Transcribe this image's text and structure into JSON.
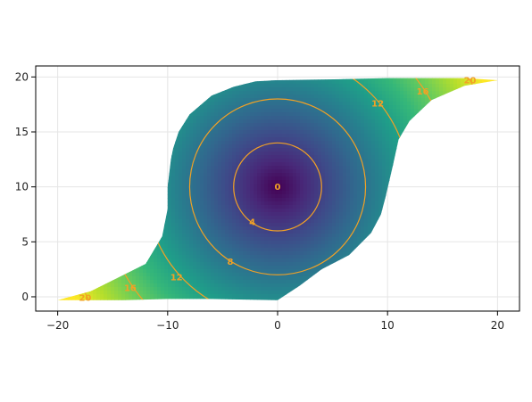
{
  "chart_data": {
    "type": "contour",
    "description_fill": "viridis-shaded distance field over a warped domain, centered at (0,10)",
    "center": [
      0,
      10
    ],
    "xlim": [
      -22,
      22
    ],
    "ylim": [
      -1.3,
      21
    ],
    "xticks": [
      -20,
      -10,
      0,
      10,
      20
    ],
    "xtick_labels": [
      "−20",
      "−10",
      "0",
      "10",
      "20"
    ],
    "yticks": [
      0,
      5,
      10,
      15,
      20
    ],
    "ytick_labels": [
      "0",
      "5",
      "10",
      "15",
      "20"
    ],
    "grid": true,
    "colormap": "viridis",
    "contour_color": "#f2a125",
    "contour_levels": [
      4,
      8,
      12,
      16,
      20
    ],
    "contour_labels": [
      {
        "text": "0",
        "x": 0,
        "y": 10
      },
      {
        "text": "4",
        "x": -2.3,
        "y": 6.8
      },
      {
        "text": "8",
        "x": -4.3,
        "y": 3.2
      },
      {
        "text": "12",
        "x": 9.1,
        "y": 17.6
      },
      {
        "text": "12",
        "x": -9.2,
        "y": 1.8
      },
      {
        "text": "16",
        "x": 13.2,
        "y": 18.7
      },
      {
        "text": "16",
        "x": -13.4,
        "y": 0.8
      },
      {
        "text": "20",
        "x": 17.5,
        "y": 19.7
      },
      {
        "text": "20",
        "x": -17.5,
        "y": -0.1
      }
    ],
    "domain_boundary": {
      "top": [
        [
          -9.7,
          12.5
        ],
        [
          -9.5,
          13.5
        ],
        [
          -9,
          15
        ],
        [
          -8,
          16.6
        ],
        [
          -6,
          18.3
        ],
        [
          -4,
          19.1
        ],
        [
          -2,
          19.6
        ],
        [
          0,
          19.7
        ],
        [
          6,
          19.8
        ],
        [
          10,
          19.9
        ],
        [
          14,
          19.9
        ],
        [
          17,
          19.9
        ],
        [
          20,
          19.7
        ]
      ],
      "right": [
        [
          20,
          19.7
        ],
        [
          17,
          19.2
        ],
        [
          14,
          17.9
        ],
        [
          12,
          16.0
        ],
        [
          11,
          14.3
        ],
        [
          10.5,
          12.0
        ],
        [
          9.8,
          9.0
        ],
        [
          9.4,
          7.5
        ],
        [
          8.5,
          5.8
        ],
        [
          6.5,
          3.8
        ],
        [
          4,
          2.5
        ],
        [
          2,
          1.0
        ],
        [
          0,
          -0.3
        ]
      ],
      "bottom": [
        [
          0,
          -0.3
        ],
        [
          -6,
          -0.2
        ],
        [
          -10,
          -0.2
        ],
        [
          -14,
          -0.3
        ],
        [
          -17,
          -0.3
        ],
        [
          -20,
          -0.3
        ]
      ],
      "left": [
        [
          -20,
          -0.3
        ],
        [
          -17,
          0.5
        ],
        [
          -15,
          1.5
        ],
        [
          -12,
          3.0
        ],
        [
          -10.5,
          5.5
        ],
        [
          -10,
          8.0
        ],
        [
          -10,
          10.0
        ],
        [
          -9.7,
          12.5
        ]
      ]
    }
  }
}
